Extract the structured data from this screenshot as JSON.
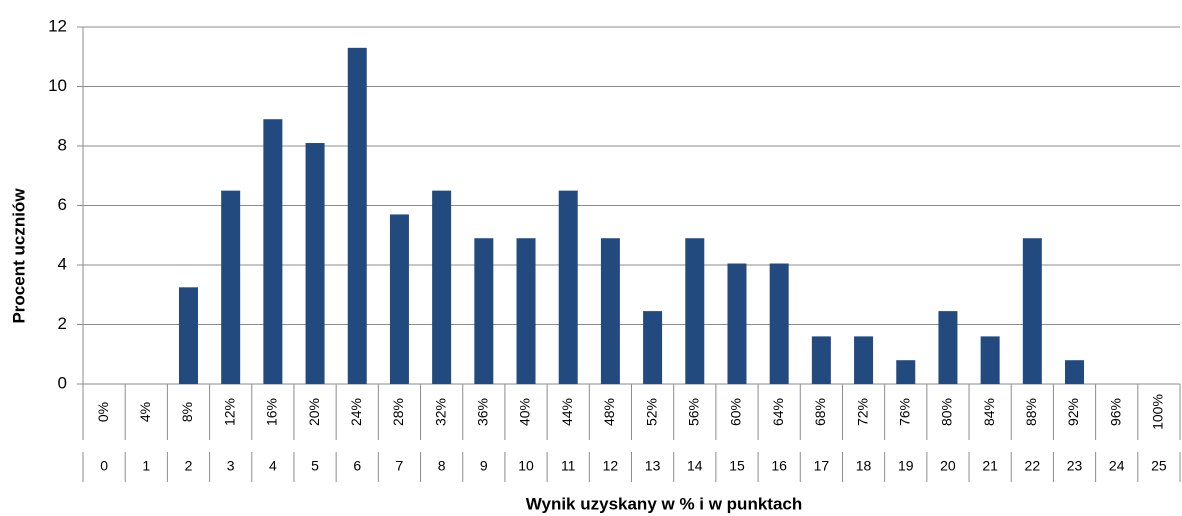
{
  "chart_data": {
    "type": "bar",
    "categories": [
      "0%",
      "4%",
      "8%",
      "12%",
      "16%",
      "20%",
      "24%",
      "28%",
      "32%",
      "36%",
      "40%",
      "44%",
      "48%",
      "52%",
      "56%",
      "60%",
      "64%",
      "68%",
      "72%",
      "76%",
      "80%",
      "84%",
      "88%",
      "92%",
      "96%",
      "100%"
    ],
    "points": [
      0,
      1,
      2,
      3,
      4,
      5,
      6,
      7,
      8,
      9,
      10,
      11,
      12,
      13,
      14,
      15,
      16,
      17,
      18,
      19,
      20,
      21,
      22,
      23,
      24,
      25
    ],
    "values": [
      0,
      0,
      3.25,
      6.5,
      8.9,
      8.1,
      11.3,
      5.7,
      6.5,
      4.9,
      4.9,
      6.5,
      4.9,
      2.45,
      4.9,
      4.05,
      4.05,
      1.6,
      1.6,
      0.8,
      2.45,
      1.6,
      4.9,
      0.8,
      0,
      0
    ],
    "color": "#234a7e",
    "xlabel": "Wynik uzyskany w % i w punktach",
    "ylabel": "Procent uczniów",
    "ylim": [
      0,
      12
    ],
    "yticks": [
      0,
      2,
      4,
      6,
      8,
      10,
      12
    ],
    "grid": true
  }
}
